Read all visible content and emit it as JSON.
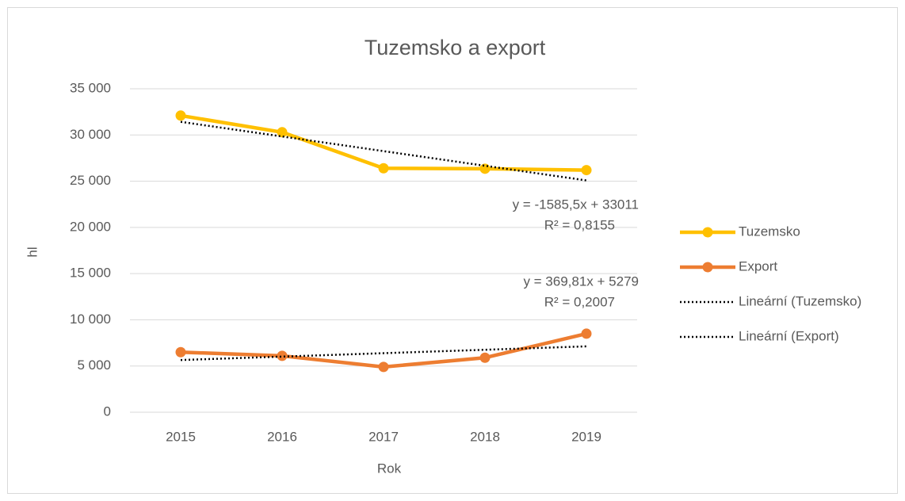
{
  "chart_data": {
    "type": "line",
    "title": "Tuzemsko a export",
    "x_label": "Rok",
    "y_label": "hl",
    "categories": [
      "2015",
      "2016",
      "2017",
      "2018",
      "2019"
    ],
    "series": [
      {
        "name": "Tuzemsko",
        "color": "#ffc000",
        "values": [
          32100,
          30300,
          26400,
          26350,
          26200
        ],
        "markers": true,
        "line_style": "solid"
      },
      {
        "name": "Export",
        "color": "#ed7d31",
        "values": [
          6500,
          6100,
          4900,
          5900,
          8500
        ],
        "markers": true,
        "line_style": "solid"
      },
      {
        "name": "Lineární (Tuzemsko)",
        "color": "#000000",
        "values": [
          31425.5,
          29840,
          28254.5,
          26669,
          25083.5
        ],
        "markers": false,
        "line_style": "dotted"
      },
      {
        "name": "Lineární (Export)",
        "color": "#000000",
        "values": [
          5648.81,
          6018.62,
          6388.43,
          6758.24,
          7128.05
        ],
        "markers": false,
        "line_style": "dotted"
      }
    ],
    "annotations": [
      {
        "lines": [
          "y = -1585,5x + 33011",
          "R² = 0,8155"
        ]
      },
      {
        "lines": [
          "y = 369,81x + 5279",
          "R² = 0,2007"
        ]
      }
    ],
    "ylim": [
      0,
      35000
    ],
    "yticks": [
      0,
      {
        "value": 5000,
        "label": "5 000"
      },
      {
        "value": 10000,
        "label": "10 000"
      },
      {
        "value": 15000,
        "label": "15 000"
      },
      {
        "value": 20000,
        "label": "20 000"
      },
      {
        "value": 25000,
        "label": "25 000"
      },
      {
        "value": 30000,
        "label": "30 000"
      },
      {
        "value": 35000,
        "label": "35 000"
      }
    ],
    "grid": true,
    "legend": "right"
  }
}
